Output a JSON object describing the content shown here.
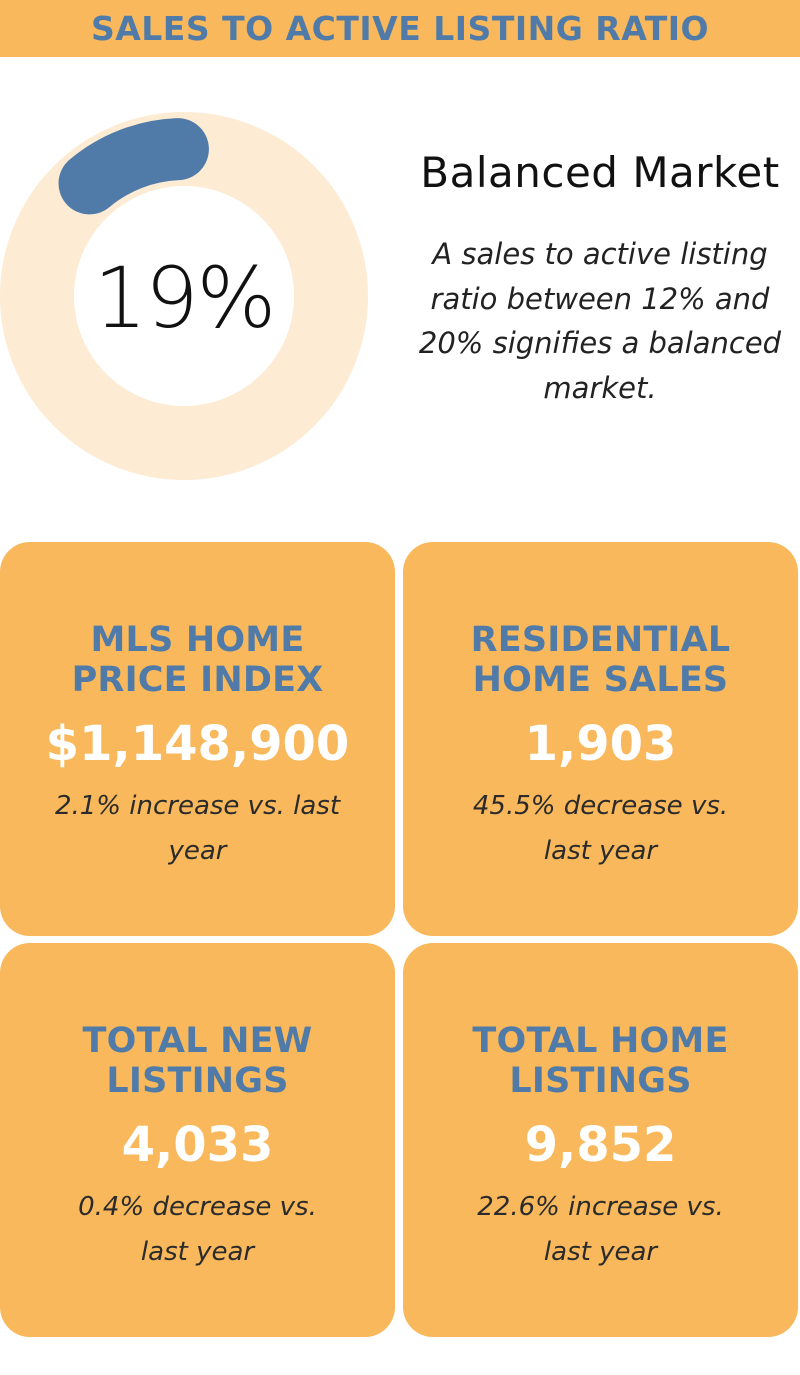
{
  "header": {
    "title": "SALES TO ACTIVE LISTING RATIO"
  },
  "gauge": {
    "value_label": "19%",
    "fraction": 0.19,
    "track_color": "#fdebd4",
    "fill_color": "#507ba8"
  },
  "market": {
    "status": "Balanced Market",
    "description": "A sales to active listing ratio between 12% and 20% signifies a balanced market."
  },
  "cards": [
    {
      "title": "MLS HOME PRICE INDEX",
      "value": "$1,148,900",
      "note": "2.1% increase vs. last year"
    },
    {
      "title": "RESIDENTIAL HOME SALES",
      "value": "1,903",
      "note": "45.5% decrease vs. last year"
    },
    {
      "title": "TOTAL NEW LISTINGS",
      "value": "4,033",
      "note": "0.4% decrease vs. last year"
    },
    {
      "title": "TOTAL HOME LISTINGS",
      "value": "9,852",
      "note": "22.6% increase vs. last year"
    }
  ],
  "colors": {
    "accent": "#f8b85b",
    "title_blue": "#507ba8"
  }
}
